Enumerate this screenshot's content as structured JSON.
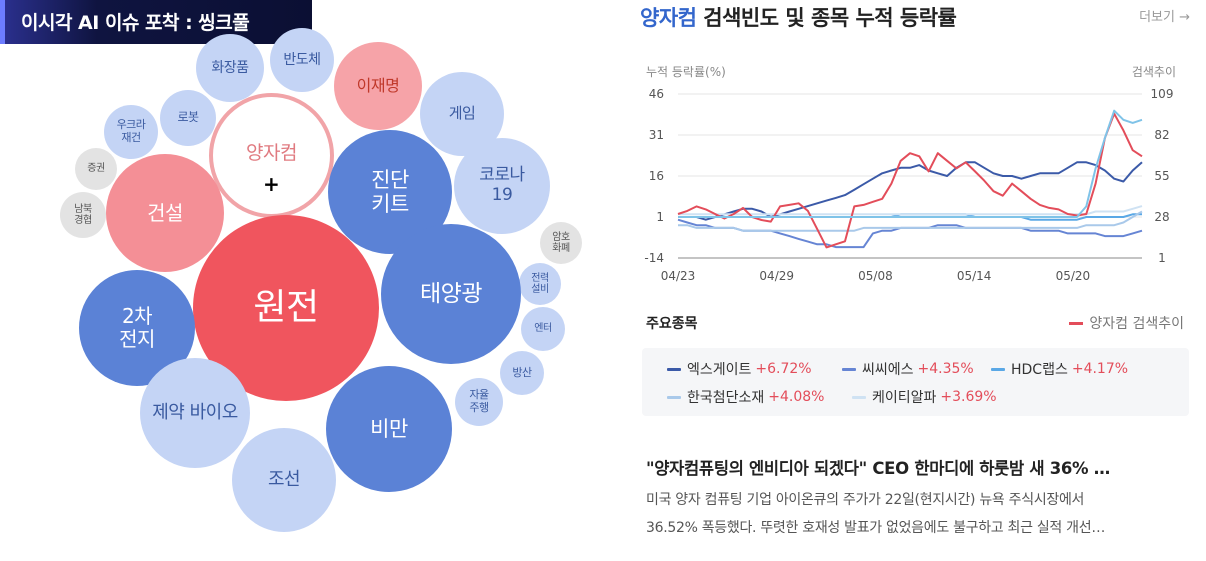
{
  "banner": {
    "title": "이시각 AI 이슈 포착 : 씽크풀"
  },
  "bubbles": [
    {
      "label": "화장품",
      "style": "light"
    },
    {
      "label": "반도체",
      "style": "light"
    },
    {
      "label": "이재명",
      "style": "salmon"
    },
    {
      "label": "게임",
      "style": "light"
    },
    {
      "label": "우크라 재건",
      "style": "light"
    },
    {
      "label": "로봇",
      "style": "light"
    },
    {
      "label": "양자컴",
      "style": "white"
    },
    {
      "label": "진단 키트",
      "style": "dark"
    },
    {
      "label": "증권",
      "style": "gray"
    },
    {
      "label": "건설",
      "style": "pink"
    },
    {
      "label": "코로나 19",
      "style": "light"
    },
    {
      "label": "남북 경협",
      "style": "gray"
    },
    {
      "label": "원전",
      "style": "red"
    },
    {
      "label": "암호 화폐",
      "style": "gray"
    },
    {
      "label": "전력 설비",
      "style": "light"
    },
    {
      "label": "태양광",
      "style": "dark"
    },
    {
      "label": "2차 전지",
      "style": "dark"
    },
    {
      "label": "엔터",
      "style": "light"
    },
    {
      "label": "방산",
      "style": "light"
    },
    {
      "label": "자율 주행",
      "style": "light"
    },
    {
      "label": "제약 바이오",
      "style": "light"
    },
    {
      "label": "비만",
      "style": "dark"
    },
    {
      "label": "조선",
      "style": "light"
    }
  ],
  "cursor": "+",
  "panel": {
    "title_accent": "양자컴",
    "title_rest": " 검색빈도 및 종목 누적 등락률",
    "more_label": "더보기 →",
    "section_label": "주요종목",
    "search_legend": "양자컴 검색추이"
  },
  "chart_data": {
    "type": "line",
    "ylabel_left": "누적 등락률(%)",
    "ylabel_right": "검색추이",
    "y_ticks_left": [
      "46",
      "31",
      "16",
      "1",
      "-14"
    ],
    "y_ticks_right": [
      "109",
      "82",
      "55",
      "28",
      "1"
    ],
    "ylim_left": [
      -14,
      46
    ],
    "ylim_right": [
      1,
      109
    ],
    "x_ticks": [
      "04/23",
      "04/29",
      "05/08",
      "05/14",
      "05/20"
    ],
    "series": [
      {
        "name": "엑스게이트",
        "color": "#3b5aa8",
        "axis": "left",
        "values": [
          1,
          1,
          1,
          0,
          1,
          2,
          3,
          4,
          4,
          3,
          1,
          2,
          3,
          4,
          5,
          6,
          7,
          8,
          9,
          11,
          13,
          15,
          17,
          18,
          19,
          19,
          20,
          18,
          17,
          16,
          19,
          21,
          21,
          19,
          17,
          16,
          16,
          15,
          16,
          17,
          17,
          17,
          19,
          21,
          21,
          20,
          18,
          15,
          14,
          18,
          21
        ]
      },
      {
        "name": "씨씨에스",
        "color": "#6685d4",
        "axis": "left",
        "values": [
          0,
          -1,
          -2,
          -2,
          -3,
          -3,
          -3,
          -4,
          -4,
          -4,
          -4,
          -5,
          -6,
          -7,
          -8,
          -9,
          -9,
          -10,
          -10,
          -10,
          -10,
          -5,
          -4,
          -4,
          -3,
          -3,
          -3,
          -3,
          -2,
          -2,
          -2,
          -3,
          -3,
          -3,
          -3,
          -3,
          -3,
          -3,
          -4,
          -4,
          -4,
          -4,
          -5,
          -5,
          -5,
          -5,
          -6,
          -6,
          -6,
          -5,
          -4
        ]
      },
      {
        "name": "HDC랩스",
        "color": "#5aa8e6",
        "axis": "left",
        "values": [
          1,
          1,
          1,
          1,
          1,
          1,
          1,
          1,
          1,
          1,
          1,
          1,
          1,
          1,
          1,
          1,
          1,
          1,
          1,
          1,
          1,
          1,
          1,
          1,
          2,
          2,
          2,
          2,
          2,
          2,
          2,
          2,
          1,
          1,
          1,
          1,
          1,
          1,
          0,
          0,
          0,
          0,
          0,
          0,
          1,
          1,
          1,
          1,
          1,
          2,
          2
        ]
      },
      {
        "name": "한국첨단소재",
        "color": "#a9c9ea",
        "axis": "left",
        "values": [
          -2,
          -2,
          -3,
          -3,
          -3,
          -3,
          -3,
          -4,
          -4,
          -4,
          -4,
          -4,
          -4,
          -4,
          -4,
          -4,
          -4,
          -4,
          -4,
          -4,
          -3,
          -3,
          -3,
          -3,
          -3,
          -3,
          -3,
          -3,
          -3,
          -3,
          -3,
          -3,
          -3,
          -3,
          -3,
          -3,
          -3,
          -3,
          -3,
          -3,
          -3,
          -3,
          -3,
          -3,
          -2,
          -2,
          -2,
          -2,
          -1,
          1,
          3
        ]
      },
      {
        "name": "케이티알파",
        "color": "#cfe2f3",
        "axis": "left",
        "values": [
          2,
          2,
          2,
          2,
          2,
          2,
          2,
          2,
          2,
          2,
          2,
          2,
          2,
          2,
          2,
          2,
          2,
          2,
          2,
          2,
          2,
          2,
          2,
          2,
          2,
          2,
          2,
          2,
          2,
          2,
          2,
          2,
          2,
          2,
          2,
          2,
          2,
          2,
          2,
          2,
          2,
          2,
          2,
          2,
          2,
          3,
          3,
          3,
          3,
          4,
          5
        ]
      },
      {
        "name": "양자컴 검색추이",
        "color": "#e34d5a",
        "axis": "right",
        "values": [
          30,
          32,
          35,
          33,
          30,
          27,
          30,
          34,
          28,
          26,
          25,
          35,
          36,
          37,
          32,
          20,
          8,
          10,
          12,
          35,
          36,
          38,
          40,
          50,
          65,
          70,
          68,
          58,
          70,
          65,
          60,
          64,
          58,
          52,
          45,
          42,
          50,
          45,
          40,
          36,
          34,
          33,
          30,
          29,
          30,
          50,
          80,
          96,
          85,
          72,
          68
        ]
      },
      {
        "name": "",
        "color": "#7fc3e8",
        "axis": "right",
        "values": [
          28,
          28,
          28,
          28,
          28,
          28,
          28,
          28,
          28,
          28,
          28,
          28,
          28,
          28,
          28,
          28,
          28,
          28,
          28,
          28,
          28,
          28,
          28,
          28,
          28,
          28,
          28,
          28,
          28,
          28,
          28,
          28,
          28,
          28,
          28,
          28,
          28,
          28,
          28,
          28,
          28,
          28,
          28,
          28,
          35,
          60,
          80,
          98,
          92,
          90,
          92
        ]
      }
    ]
  },
  "stocks": [
    {
      "name": "엑스게이트",
      "change": "+6.72%",
      "color": "#3b5aa8"
    },
    {
      "name": "씨씨에스",
      "change": "+4.35%",
      "color": "#6685d4"
    },
    {
      "name": "HDC랩스",
      "change": "+4.17%",
      "color": "#5aa8e6"
    },
    {
      "name": "한국첨단소재",
      "change": "+4.08%",
      "color": "#a9c9ea"
    },
    {
      "name": "케이티알파",
      "change": "+3.69%",
      "color": "#cfe2f3"
    }
  ],
  "news": {
    "title": "\"양자컴퓨팅의 엔비디아 되겠다\" CEO 한마디에 하룻밤 새 36% …",
    "body_line1": "미국 양자 컴퓨팅 기업 아이온큐의 주가가 22일(현지시간) 뉴욕 주식시장에서",
    "body_line2": "36.52% 폭등했다. 뚜렷한 호재성 발표가 없었음에도 불구하고 최근 실적 개선…"
  }
}
